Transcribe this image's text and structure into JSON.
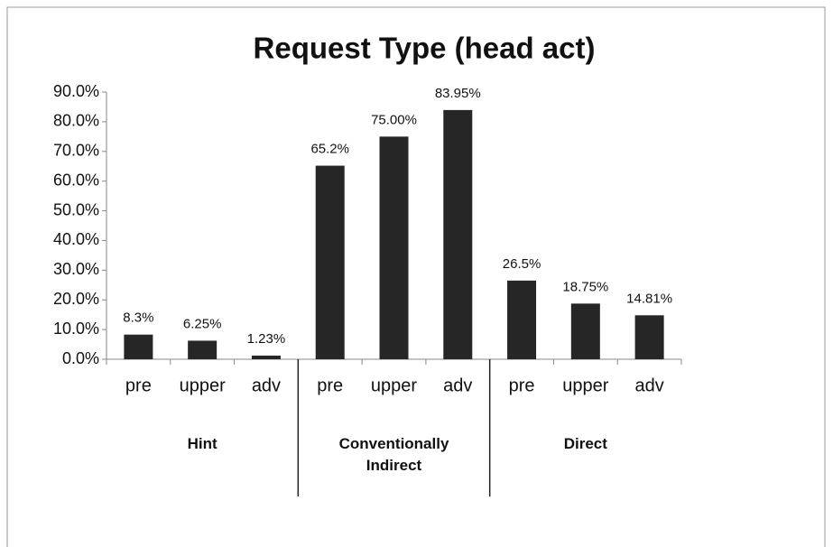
{
  "chart_data": {
    "type": "bar",
    "title": "Request Type (head act)",
    "categories": [
      "pre",
      "upper",
      "adv",
      "pre",
      "upper",
      "adv",
      "pre",
      "upper",
      "adv"
    ],
    "groups": [
      "Hint",
      "Conventionally Indirect",
      "Direct"
    ],
    "values": [
      8.3,
      6.25,
      1.23,
      65.2,
      75.0,
      83.95,
      26.5,
      18.75,
      14.81
    ],
    "value_labels": [
      "8.3%",
      "6.25%",
      "1.23%",
      "65.2%",
      "75.00%",
      "83.95%",
      "26.5%",
      "18.75%",
      "14.81%"
    ],
    "color": "#262626",
    "ylim": [
      0,
      90
    ],
    "yticks": [
      {
        "value": 0,
        "label": "0.0%"
      },
      {
        "value": 10,
        "label": "10.0%"
      },
      {
        "value": 20,
        "label": "20.0%"
      },
      {
        "value": 30,
        "label": "30.0%"
      },
      {
        "value": 40,
        "label": "40.0%"
      },
      {
        "value": 50,
        "label": "50.0%"
      },
      {
        "value": 60,
        "label": "60.0%"
      },
      {
        "value": 70,
        "label": "70.0%"
      },
      {
        "value": 80,
        "label": "80.0%"
      },
      {
        "value": 90,
        "label": "90.0%"
      }
    ]
  }
}
